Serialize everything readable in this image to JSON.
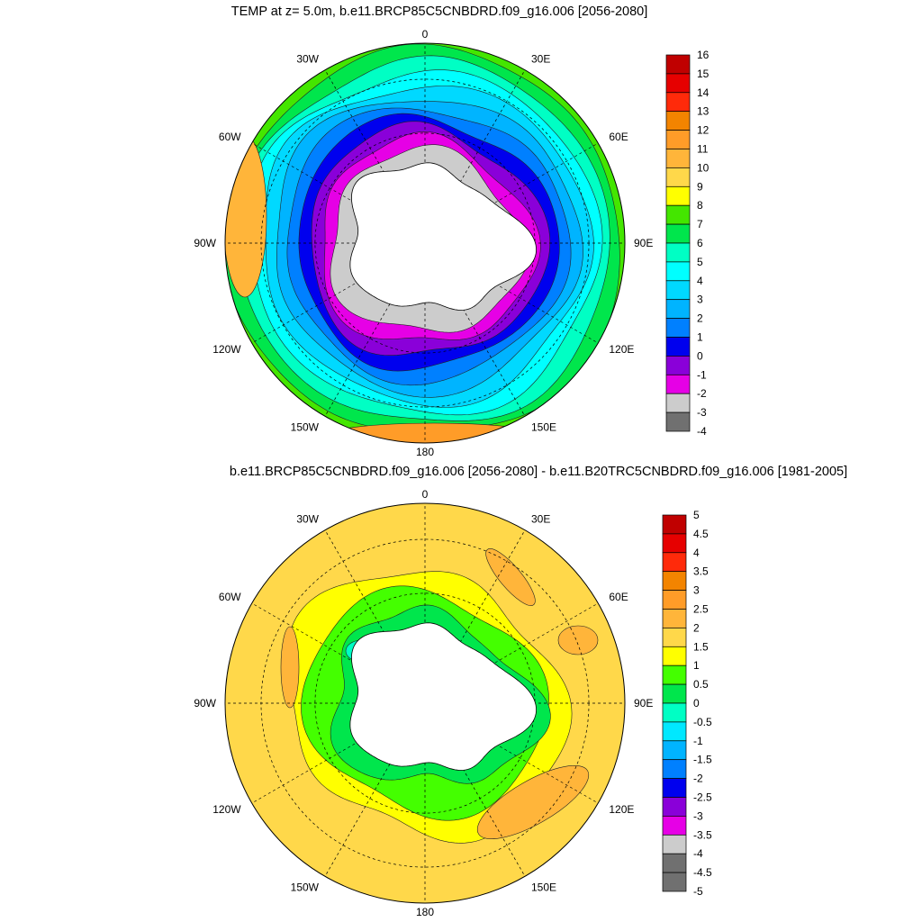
{
  "panels": [
    {
      "id": "top",
      "title": "TEMP at z=   5.0m, b.e11.BRCP85C5CNBDRD.f09_g16.006 [2056-2080]",
      "lon_labels": [
        "0",
        "30E",
        "60E",
        "90E",
        "120E",
        "150E",
        "180",
        "150W",
        "120W",
        "90W",
        "60W",
        "30W"
      ],
      "colorbar": {
        "labels": [
          "16",
          "15",
          "14",
          "13",
          "12",
          "11",
          "10",
          "9",
          "8",
          "7",
          "6",
          "5",
          "4",
          "3",
          "2",
          "1",
          "0",
          "-1",
          "-2",
          "-3",
          "-4"
        ],
        "colors": [
          "#c00000",
          "#e60000",
          "#ff2a0a",
          "#f38400",
          "#ff9c28",
          "#ffb53a",
          "#ffd84a",
          "#ffff00",
          "#44e600",
          "#00e64c",
          "#00ffc4",
          "#00ffff",
          "#00d9ff",
          "#00b4ff",
          "#0080ff",
          "#0000ee",
          "#8a00d9",
          "#e600e6",
          "#cccccc",
          "#707070"
        ]
      },
      "fill_values": {
        "ring_from_coast": [
          -2,
          -1,
          0,
          1,
          2,
          3,
          4,
          5,
          6,
          7,
          8,
          9,
          10
        ],
        "warm_patches": [
          11,
          12
        ]
      }
    },
    {
      "id": "bottom",
      "title": "b.e11.BRCP85C5CNBDRD.f09_g16.006 [2056-2080] - b.e11.B20TRC5CNBDRD.f09_g16.006 [1981-2005]",
      "lon_labels": [
        "0",
        "30E",
        "60E",
        "90E",
        "120E",
        "150E",
        "180",
        "150W",
        "120W",
        "90W",
        "60W",
        "30W"
      ],
      "colorbar": {
        "labels": [
          "5",
          "4.5",
          "4",
          "3.5",
          "3",
          "2.5",
          "2",
          "1.5",
          "1",
          "0.5",
          "0",
          "-0.5",
          "-1",
          "-1.5",
          "-2",
          "-2.5",
          "-3",
          "-3.5",
          "-4",
          "-4.5",
          "-5"
        ],
        "colors": [
          "#c00000",
          "#e60000",
          "#ff2a0a",
          "#f38400",
          "#ff9c28",
          "#ffb53a",
          "#ffd84a",
          "#ffff00",
          "#44ff00",
          "#00e64c",
          "#00ffc4",
          "#00e8ff",
          "#00b4ff",
          "#0080ff",
          "#0000ee",
          "#8a00d9",
          "#e600e6",
          "#cccccc",
          "#707070",
          "#707070"
        ]
      },
      "fill_values": {
        "background": 1.75,
        "warm_patches": 2.25,
        "mid_ring": 1.25,
        "near_coast": 0.75,
        "coast": 0.25,
        "weddell": -0.25
      }
    }
  ],
  "colors": {
    "land": "#ffffff",
    "grid": "#000000",
    "contour": "#222222"
  }
}
